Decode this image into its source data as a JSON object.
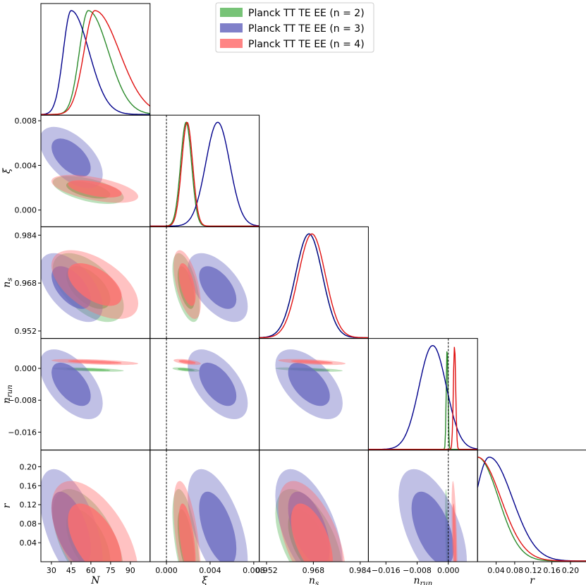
{
  "chart_data": {
    "type": "triangle",
    "parameters": [
      {
        "name": "N",
        "label": "N",
        "sub": "",
        "range": [
          22,
          105
        ],
        "ticks": [
          30,
          45,
          60,
          75,
          90
        ]
      },
      {
        "name": "xi",
        "label": "ξ",
        "sub": "",
        "range": [
          -0.0015,
          0.0085
        ],
        "ticks": [
          0.0,
          0.004,
          0.008
        ],
        "tick_labels": [
          "0.000",
          "0.004",
          "0.008"
        ]
      },
      {
        "name": "ns",
        "label": "n",
        "sub": "s",
        "range": [
          0.9495,
          0.9868
        ],
        "ticks": [
          0.952,
          0.968,
          0.984
        ],
        "tick_labels": [
          "0.952",
          "0.968",
          "0.984"
        ]
      },
      {
        "name": "nrun",
        "label": "n",
        "sub": "run",
        "range": [
          -0.0205,
          0.0075
        ],
        "ticks": [
          -0.016,
          -0.008,
          0.0
        ],
        "tick_labels": [
          "−0.016",
          "−0.008",
          "0.000"
        ]
      },
      {
        "name": "r",
        "label": "r",
        "sub": "",
        "range": [
          0.0,
          0.235
        ],
        "ticks": [
          0.04,
          0.08,
          0.12,
          0.16,
          0.2
        ],
        "tick_labels": [
          "0.04",
          "0.08",
          "0.12",
          "0.16",
          "0.20"
        ]
      }
    ],
    "reference_lines": {
      "xi": 0.0,
      "nrun": 0.0
    },
    "series": [
      {
        "name": "Planck TT TE EE (n = 2)",
        "legend_label": "Planck TT TE EE (n = 2)",
        "color": "#2a8a2a",
        "fill": "#5fb85f",
        "N": {
          "mean": 58,
          "sd": 9,
          "skew": 4
        },
        "xi": {
          "mean": 0.0018,
          "sd": 0.0005
        },
        "ns": {
          "mean": 0.9665,
          "sd": 0.0046
        },
        "nrun": {
          "mean": -0.0003,
          "sd": 0.00022
        },
        "r": {
          "scale": 0.045
        }
      },
      {
        "name": "Planck TT TE EE (n = 3)",
        "legend_label": "Planck TT TE EE (n = 3)",
        "color": "#00008b",
        "fill": "#6a6ac0",
        "N": {
          "mean": 45,
          "sd": 8,
          "skew": 3
        },
        "xi": {
          "mean": 0.0047,
          "sd": 0.0011
        },
        "ns": {
          "mean": 0.9665,
          "sd": 0.0046
        },
        "nrun": {
          "mean": -0.004,
          "sd": 0.0035
        },
        "r": {
          "mode": 0.025,
          "scale": 0.05
        }
      },
      {
        "name": "Planck TT TE EE (n = 4)",
        "legend_label": "Planck TT TE EE (n = 4)",
        "color": "#e01010",
        "fill": "#ff6e6e",
        "N": {
          "mean": 63,
          "sd": 11,
          "skew": 5
        },
        "xi": {
          "mean": 0.0019,
          "sd": 0.0005
        },
        "ns": {
          "mean": 0.9675,
          "sd": 0.0046
        },
        "nrun": {
          "mean": 0.0016,
          "sd": 0.0003
        },
        "r": {
          "scale": 0.05
        }
      }
    ],
    "legend_position": "top-right",
    "title": "",
    "grid": false
  }
}
